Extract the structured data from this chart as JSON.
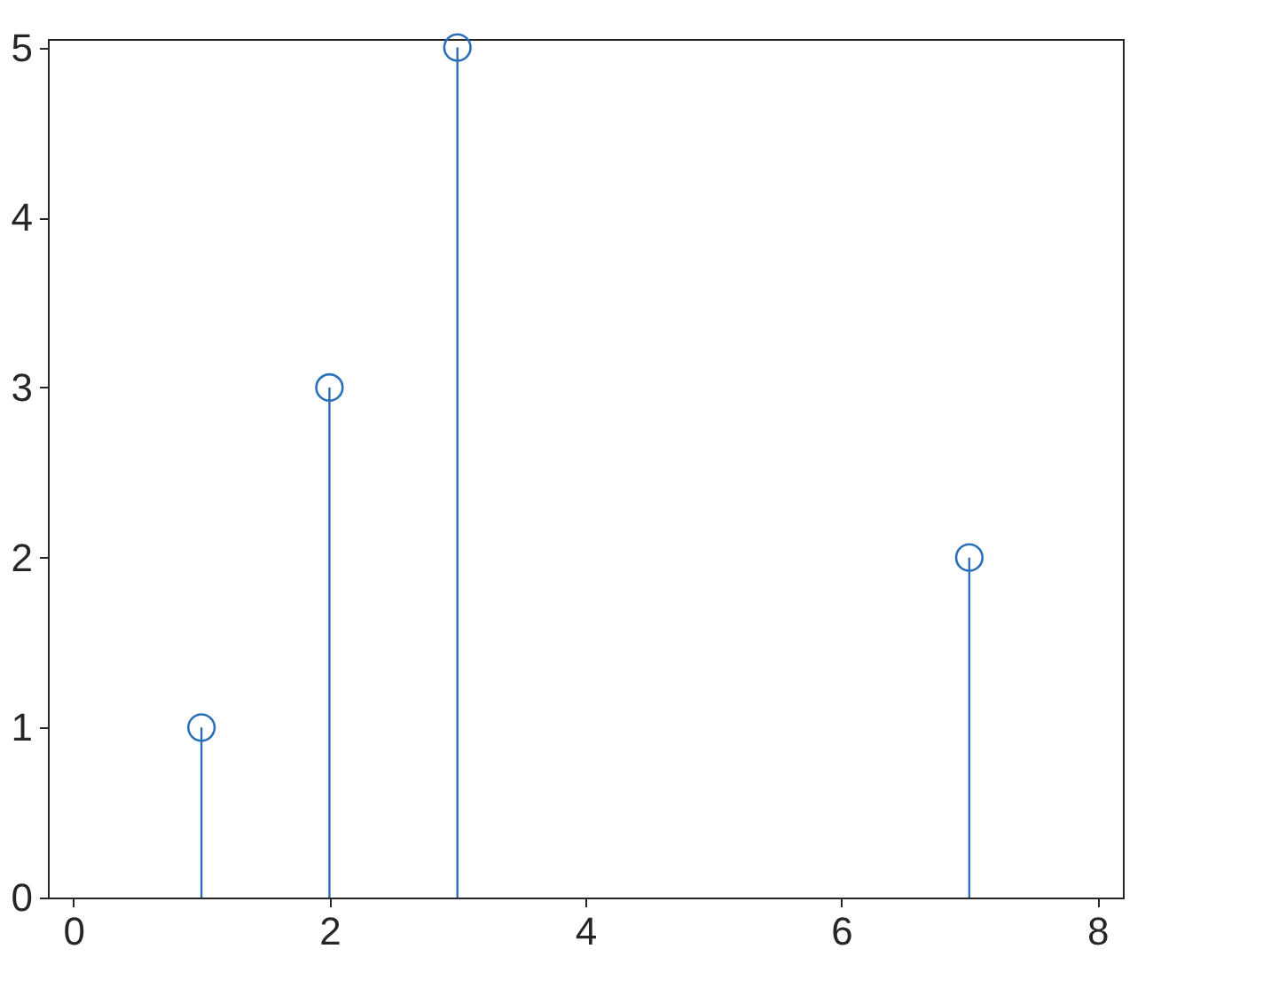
{
  "chart_data": {
    "type": "lollipop",
    "x": [
      1,
      2,
      3,
      7
    ],
    "values": [
      1,
      3,
      5,
      2
    ],
    "color": "#2a6fb8",
    "xlim": [
      -0.2,
      8.2
    ],
    "xticks": [
      0,
      2,
      4,
      6,
      8
    ],
    "ylim": [
      0,
      5.05
    ],
    "yticks": [
      0,
      1,
      2,
      3,
      4,
      5
    ],
    "grid": false,
    "marker": "circle",
    "line_style": "solid"
  }
}
